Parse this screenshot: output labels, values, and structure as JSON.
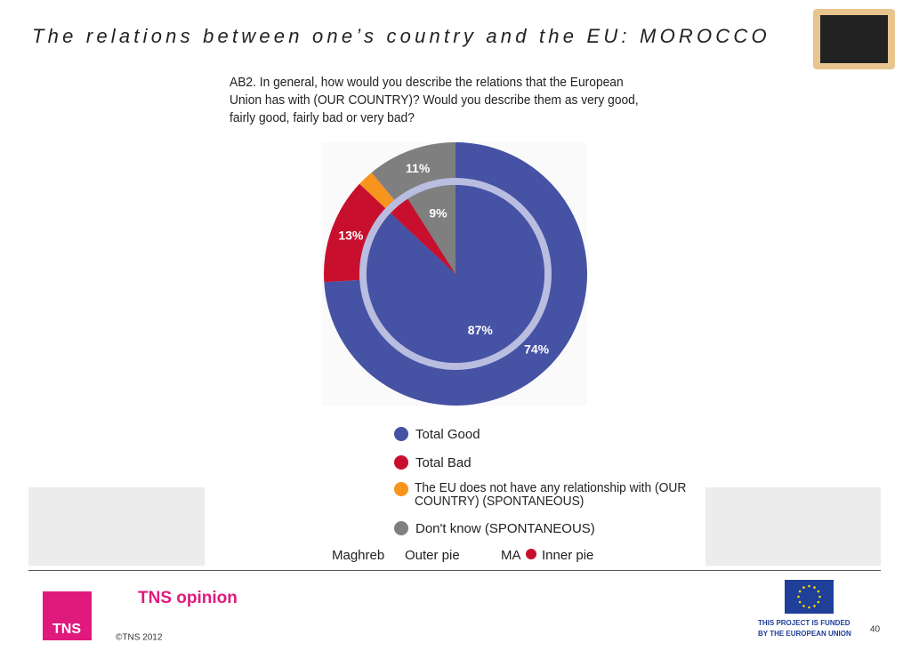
{
  "header": {
    "title": "The relations between one’s country and the EU: MOROCCO"
  },
  "chart_data": {
    "type": "pie",
    "question": "AB2. In general, how would you describe the relations that the European Union has with (OUR COUNTRY)?  Would you describe them as very good, fairly good, fairly bad or very bad?",
    "categories": [
      "Total Good",
      "Total Bad",
      "The EU does not have any relationship with (OUR COUNTRY) (SPONTANEOUS)",
      "Don't know (SPONTANEOUS)"
    ],
    "colors": [
      "#4652a3",
      "#c8102e",
      "#f7941d",
      "#7f7f7f"
    ],
    "series": [
      {
        "name": "Outer pie",
        "group": "Maghreb",
        "values": [
          74,
          13,
          2,
          11
        ],
        "value_labels": [
          "74%",
          "13%",
          null,
          "11%"
        ]
      },
      {
        "name": "Inner pie",
        "group": "MA",
        "values": [
          87,
          4,
          0,
          9
        ],
        "value_labels": [
          "87%",
          null,
          null,
          "9%"
        ]
      }
    ]
  },
  "footer": {
    "brand": "TNS opinion",
    "logo": "TNS",
    "copyright": "©TNS 2012",
    "funding": [
      "THIS PROJECT IS FUNDED",
      "BY THE EUROPEAN UNION"
    ],
    "page": "40"
  }
}
